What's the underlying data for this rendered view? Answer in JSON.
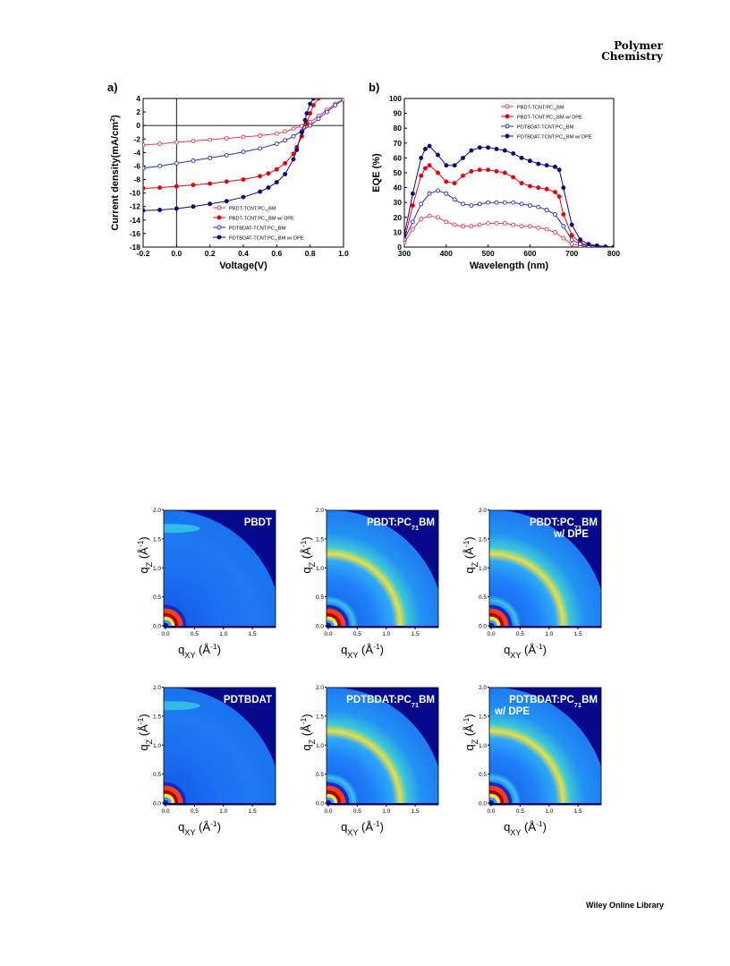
{
  "header": {
    "journal_line1": "Polymer",
    "journal_line2": "Chemistry"
  },
  "footer": {
    "publisher": "Wiley Online Library"
  },
  "chart_data": [
    {
      "panel": "a)",
      "type": "line",
      "xlabel": "Voltage(V)",
      "ylabel": "Current density(mA/cm2)",
      "xlim": [
        -0.2,
        1.0
      ],
      "ylim": [
        -18,
        4
      ],
      "xticks": [
        "-0.2",
        "0.0",
        "0.2",
        "0.4",
        "0.6",
        "0.8",
        "1.0"
      ],
      "yticks": [
        "4",
        "2",
        "0",
        "-2",
        "-4",
        "-6",
        "-8",
        "-10",
        "-12",
        "-14",
        "-16",
        "-18"
      ],
      "legend_position": "lower-right",
      "series": [
        {
          "name": "PBDT-TCNT:PC71BM",
          "color": "#e8394a",
          "marker": "open",
          "x": [
            -0.2,
            -0.1,
            0,
            0.1,
            0.2,
            0.3,
            0.4,
            0.5,
            0.6,
            0.65,
            0.7,
            0.75,
            0.8,
            0.85,
            0.9,
            0.95,
            1.0
          ],
          "y": [
            -2.9,
            -2.7,
            -2.5,
            -2.3,
            -2.1,
            -1.9,
            -1.7,
            -1.5,
            -1.2,
            -0.9,
            -0.5,
            -0.1,
            0.5,
            1.4,
            2.3,
            3.2,
            4.0
          ]
        },
        {
          "name": "PBDT-TCNT:PC71BM w/ DPE",
          "color": "#e8000f",
          "marker": "filled",
          "x": [
            -0.2,
            -0.1,
            0,
            0.1,
            0.2,
            0.3,
            0.4,
            0.5,
            0.55,
            0.6,
            0.65,
            0.7,
            0.72,
            0.75,
            0.78,
            0.8,
            0.82,
            0.85
          ],
          "y": [
            -9.3,
            -9.2,
            -9.0,
            -8.8,
            -8.6,
            -8.3,
            -8.0,
            -7.5,
            -7.1,
            -6.5,
            -5.6,
            -4.2,
            -3.2,
            -1.6,
            0.3,
            1.8,
            3.0,
            4.0
          ]
        },
        {
          "name": "PDTBDAT-TCNT:PC71BM",
          "color": "#2b2bb0",
          "marker": "open",
          "x": [
            -0.2,
            -0.1,
            0,
            0.1,
            0.2,
            0.3,
            0.4,
            0.5,
            0.6,
            0.65,
            0.7,
            0.75,
            0.8,
            0.85,
            0.9,
            0.95,
            1.0
          ],
          "y": [
            -6.3,
            -6.0,
            -5.6,
            -5.2,
            -4.8,
            -4.4,
            -3.9,
            -3.4,
            -2.7,
            -2.2,
            -1.6,
            -0.8,
            0.0,
            1.0,
            2.0,
            3.0,
            3.8
          ]
        },
        {
          "name": "PDTBDAT-TCNT:PC71BM w/ DPE",
          "color": "#0a0a7a",
          "marker": "filled",
          "x": [
            -0.2,
            -0.1,
            0,
            0.1,
            0.2,
            0.3,
            0.4,
            0.5,
            0.55,
            0.6,
            0.65,
            0.7,
            0.72,
            0.75,
            0.77,
            0.78,
            0.8,
            0.82
          ],
          "y": [
            -12.6,
            -12.5,
            -12.3,
            -12.0,
            -11.6,
            -11.2,
            -10.6,
            -9.8,
            -9.2,
            -8.4,
            -7.2,
            -5.0,
            -3.6,
            -1.0,
            0.8,
            1.8,
            3.2,
            4.0
          ]
        }
      ]
    },
    {
      "panel": "b)",
      "type": "line",
      "xlabel": "Wavelength (nm)",
      "ylabel": "EQE (%)",
      "xlim": [
        300,
        800
      ],
      "ylim": [
        0,
        100
      ],
      "xticks": [
        "300",
        "400",
        "500",
        "600",
        "700",
        "800"
      ],
      "yticks": [
        "0",
        "10",
        "20",
        "30",
        "40",
        "50",
        "60",
        "70",
        "80",
        "90",
        "100"
      ],
      "legend_position": "upper-right",
      "series": [
        {
          "name": "PBDT-TCNT:PC71BM",
          "color": "#e8394a",
          "marker": "open",
          "x": [
            300,
            320,
            340,
            360,
            380,
            400,
            420,
            440,
            460,
            480,
            500,
            520,
            540,
            560,
            580,
            600,
            620,
            640,
            660,
            680,
            700,
            720,
            740,
            760,
            780,
            800
          ],
          "y": [
            3,
            12,
            19,
            21,
            20,
            17,
            15,
            14,
            14,
            15,
            16,
            16,
            16,
            15,
            14,
            14,
            13,
            12,
            10,
            6,
            2,
            1,
            0.5,
            0.2,
            0.1,
            0
          ]
        },
        {
          "name": "PBDT-TCNT:PC71BM w/ DPE",
          "color": "#e8000f",
          "marker": "filled",
          "x": [
            300,
            320,
            340,
            350,
            360,
            380,
            400,
            420,
            440,
            460,
            480,
            500,
            520,
            540,
            560,
            580,
            600,
            620,
            640,
            660,
            670,
            680,
            700,
            720,
            740,
            760,
            780,
            800
          ],
          "y": [
            5,
            28,
            48,
            53,
            55,
            50,
            44,
            43,
            48,
            51,
            52,
            52,
            51,
            50,
            47,
            43,
            41,
            40,
            39,
            37,
            34,
            22,
            8,
            3,
            1,
            0.5,
            0.2,
            0
          ]
        },
        {
          "name": "PDTBDAT-TCNT:PC71BM",
          "color": "#2b2bb0",
          "marker": "open",
          "x": [
            300,
            320,
            340,
            360,
            380,
            400,
            420,
            440,
            460,
            480,
            500,
            520,
            540,
            560,
            580,
            600,
            620,
            640,
            660,
            680,
            700,
            720,
            740,
            760,
            780,
            800
          ],
          "y": [
            5,
            17,
            29,
            36,
            38,
            36,
            32,
            29,
            28,
            29,
            30,
            30,
            30,
            30,
            29,
            28,
            27,
            25,
            22,
            14,
            5,
            2,
            1,
            0.5,
            0.2,
            0
          ]
        },
        {
          "name": "PDTBDAT-TCNT:PC71BM w/ DPE",
          "color": "#0a0a7a",
          "marker": "filled",
          "x": [
            300,
            320,
            340,
            350,
            360,
            380,
            400,
            420,
            440,
            460,
            480,
            500,
            520,
            540,
            560,
            580,
            600,
            620,
            640,
            660,
            670,
            680,
            700,
            720,
            740,
            760,
            780,
            800
          ],
          "y": [
            8,
            36,
            60,
            66,
            68,
            62,
            55,
            55,
            60,
            65,
            67,
            67,
            66,
            65,
            63,
            60,
            58,
            56,
            55,
            54,
            52,
            40,
            15,
            5,
            2,
            1,
            0.3,
            0
          ]
        }
      ]
    }
  ],
  "giwaxs": {
    "xlabel": "qXY (Å-1)",
    "ylabel": "qZ (Å-1)",
    "xticks": [
      "0.0",
      "0.5",
      "1.0",
      "1.5"
    ],
    "yticks": [
      "0.0",
      "0.5",
      "1.0",
      "1.5",
      "2.0"
    ],
    "panels": [
      {
        "line1": "PBDT",
        "line2": "",
        "blend": false
      },
      {
        "line1": "PBDT:PC71BM",
        "line2": "",
        "blend": true
      },
      {
        "line1": "PBDT:PC71BM",
        "line2": "w/ DPE",
        "blend": true
      },
      {
        "line1": "PDTBDAT",
        "line2": "",
        "blend": false
      },
      {
        "line1": "PDTBDAT:PC71BM",
        "line2": "",
        "blend": true
      },
      {
        "line1": "PDTBDAT:PC71BM",
        "line2": "w/ DPE",
        "blend": true
      }
    ]
  }
}
